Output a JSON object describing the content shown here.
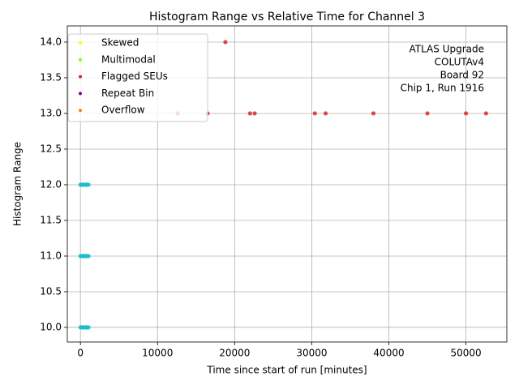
{
  "chart_data": {
    "type": "scatter",
    "title": "Histogram Range vs Relative Time for Channel 3",
    "xlabel": "Time since start of run [minutes]",
    "ylabel": "Histogram Range",
    "annotation": [
      "ATLAS Upgrade",
      "COLUTAv4",
      "Board 92",
      "Chip 1, Run 1916"
    ],
    "xlim": [
      -1700,
      55300
    ],
    "ylim": [
      9.795,
      14.227
    ],
    "xticks": [
      0,
      10000,
      20000,
      30000,
      40000,
      50000
    ],
    "yticks": [
      {
        "value": 10,
        "label": "10.0"
      },
      10.5,
      {
        "value": 11,
        "label": "11.0"
      },
      11.5,
      {
        "value": 12,
        "label": "12.0"
      },
      12.5,
      {
        "value": 13,
        "label": "13.0"
      },
      13.5,
      {
        "value": 14,
        "label": "14.0"
      }
    ],
    "grid": true,
    "legend": "upper left",
    "series": [
      {
        "name": "Skewed",
        "color": "#ffff00",
        "x": [],
        "values": []
      },
      {
        "name": "Multimodal",
        "color": "#7fff00",
        "x": [],
        "values": []
      },
      {
        "name": "Flagged SEUs",
        "color": "#d62728",
        "x": [
          18800,
          12600,
          16500,
          22000,
          22600,
          30400,
          31800,
          38000,
          45000,
          50000,
          52600
        ],
        "values": [
          14,
          13,
          13,
          13,
          13,
          13,
          13,
          13,
          13,
          13,
          13
        ]
      },
      {
        "name": "Repeat Bin",
        "color": "#800080",
        "x": [],
        "values": []
      },
      {
        "name": "Overflow",
        "color": "#ff7f0e",
        "x": [],
        "values": []
      },
      {
        "color": "#17becf",
        "x": [
          0,
          150,
          300,
          450,
          600,
          750,
          900,
          1050,
          0,
          150,
          300,
          450,
          600,
          750,
          900,
          1050,
          0,
          150,
          300,
          450,
          600,
          750,
          900,
          1050
        ],
        "values": [
          10,
          10,
          10,
          10,
          10,
          10,
          10,
          10,
          11,
          11,
          11,
          11,
          11,
          11,
          11,
          11,
          12,
          12,
          12,
          12,
          12,
          12,
          12,
          12
        ]
      }
    ]
  }
}
